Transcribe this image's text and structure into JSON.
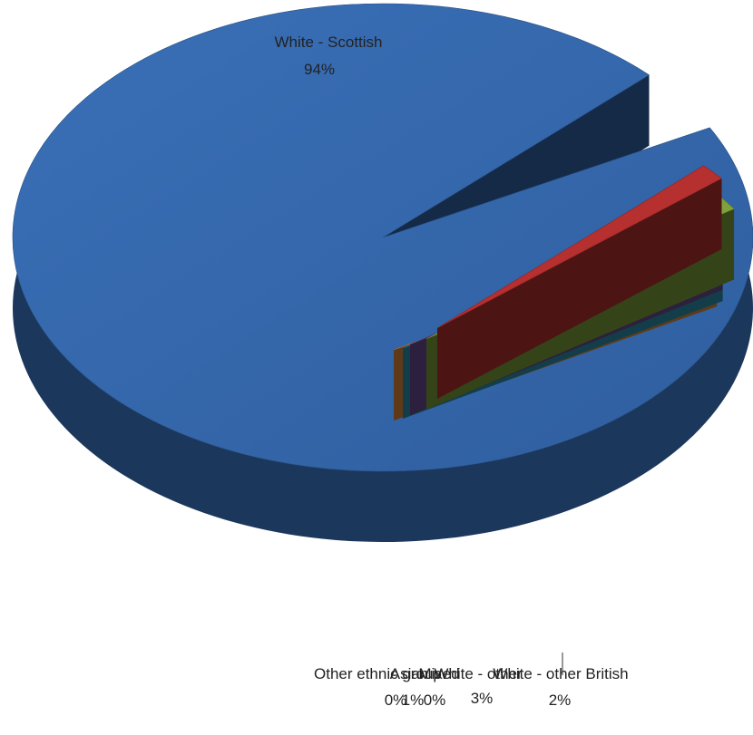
{
  "chart_data": {
    "type": "pie",
    "style": "3d-exploded",
    "title": "",
    "categories": [
      "White - Scottish",
      "White - other British",
      "White - other",
      "Mixed",
      "Asian",
      "Other ethnic group"
    ],
    "values": [
      94,
      2,
      3,
      0,
      1,
      0
    ],
    "labels": [
      {
        "name": "White - Scottish",
        "percent": "94%"
      },
      {
        "name": "White - other British",
        "percent": "2%"
      },
      {
        "name": "White - other",
        "percent": "3%"
      },
      {
        "name": "Mixed",
        "percent": "0%"
      },
      {
        "name": "Asian",
        "percent": "1%"
      },
      {
        "name": "Other ethnic group",
        "percent": "0%"
      }
    ],
    "colors": [
      "#3264A8",
      "#B5302E",
      "#7FA23A",
      "#6A4A94",
      "#2E93AD",
      "#E08A3A"
    ],
    "legend": "none"
  }
}
